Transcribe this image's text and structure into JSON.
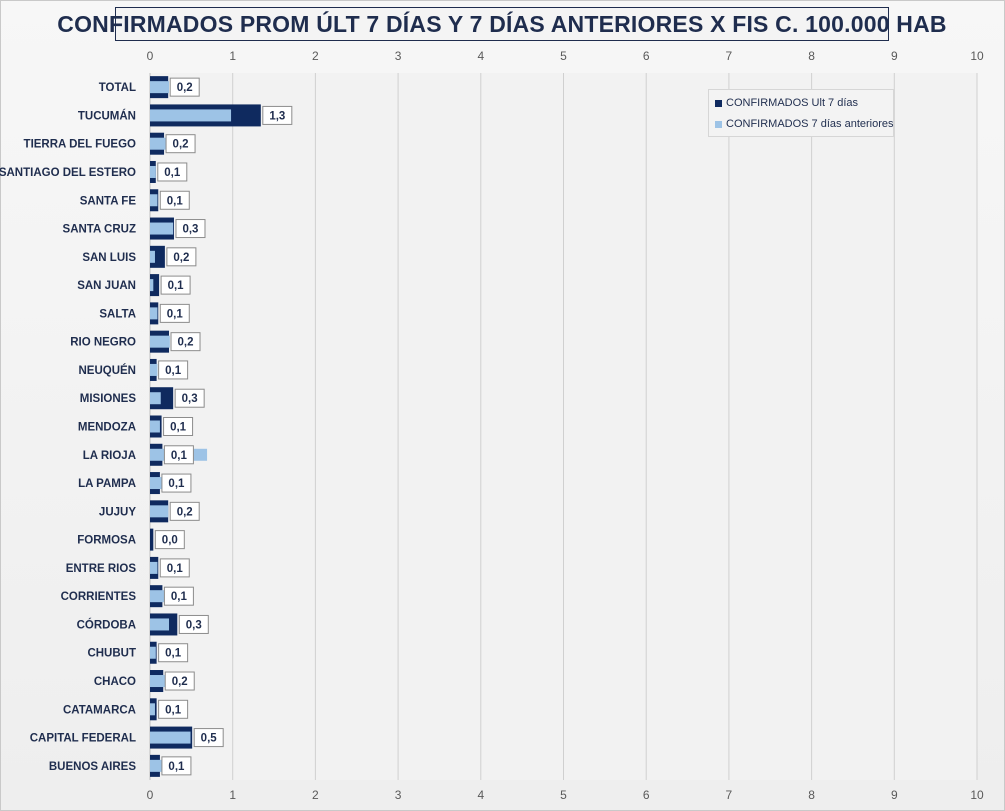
{
  "title": "CONFIRMADOS PROM ÚLT 7 DÍAS Y 7 DÍAS ANTERIORES X FIS C. 100.000 HAB",
  "legend": {
    "current": "CONFIRMADOS Ult 7 días",
    "previous": "CONFIRMADOS 7 días anteriores"
  },
  "colors": {
    "current": "#0f2a5f",
    "previous": "#9dc3e6",
    "label_text": "#1f2d4e"
  },
  "chart_data": {
    "type": "bar",
    "orientation": "horizontal",
    "title": "CONFIRMADOS PROM ÚLT 7 DÍAS Y 7 DÍAS ANTERIORES X FIS C. 100.000 HAB",
    "categories": [
      "TOTAL",
      "TUCUMÁN",
      "TIERRA  DEL FUEGO",
      "SANTIAGO  DEL ESTERO",
      "SANTA FE",
      "SANTA CRUZ",
      "SAN LUIS",
      "SAN JUAN",
      "SALTA",
      "RIO NEGRO",
      "NEUQUÉN",
      "MISIONES",
      "MENDOZA",
      "LA RIOJA",
      "LA PAMPA",
      "JUJUY",
      "FORMOSA",
      "ENTRE RIOS",
      "CORRIENTES",
      "CÓRDOBA",
      "CHUBUT",
      "CHACO",
      "CATAMARCA",
      "CAPITAL FEDERAL",
      "BUENOS  AIRES"
    ],
    "series": [
      {
        "name": "CONFIRMADOS Ult 7 días",
        "values": [
          0.22,
          1.34,
          0.17,
          0.07,
          0.1,
          0.29,
          0.18,
          0.11,
          0.1,
          0.23,
          0.08,
          0.28,
          0.14,
          0.15,
          0.12,
          0.22,
          0.04,
          0.1,
          0.15,
          0.33,
          0.08,
          0.16,
          0.08,
          0.51,
          0.12
        ],
        "data_labels": [
          "0,2",
          "1,3",
          "0,2",
          "0,1",
          "0,1",
          "0,3",
          "0,2",
          "0,1",
          "0,1",
          "0,2",
          "0,1",
          "0,3",
          "0,1",
          "0,1",
          "0,1",
          "0,2",
          "0,0",
          "0,1",
          "0,1",
          "0,3",
          "0,1",
          "0,2",
          "0,1",
          "0,5",
          "0,1"
        ]
      },
      {
        "name": "CONFIRMADOS 7 días anteriores",
        "values": [
          0.23,
          0.98,
          0.2,
          0.07,
          0.09,
          0.28,
          0.06,
          0.04,
          0.09,
          0.24,
          0.09,
          0.13,
          0.12,
          0.69,
          0.15,
          0.22,
          0.0,
          0.09,
          0.18,
          0.23,
          0.07,
          0.19,
          0.06,
          0.49,
          0.15
        ]
      }
    ],
    "xlim": [
      0,
      10
    ],
    "ticks": [
      "0",
      "1",
      "2",
      "3",
      "4",
      "5",
      "6",
      "7",
      "8",
      "9",
      "10"
    ],
    "axis_top": true,
    "axis_bottom": true,
    "grid": "vertical",
    "legend_position": "top-right",
    "xlabel": "",
    "ylabel": ""
  }
}
